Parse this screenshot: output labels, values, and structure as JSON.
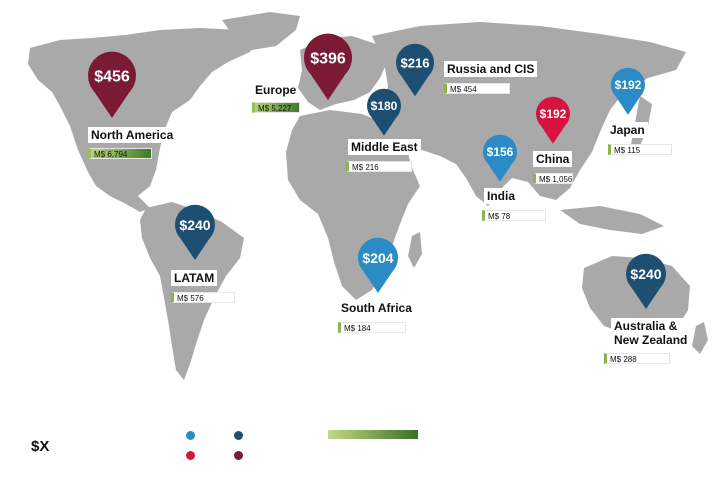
{
  "colors": {
    "land": "#a9a9a9",
    "pin_light_blue": "#2a8bc6",
    "pin_dark_blue": "#1d4f72",
    "pin_red": "#d7143f",
    "pin_maroon": "#7a1a34",
    "bar_start": "#c3da86",
    "bar_end": "#3d6f26"
  },
  "regions": [
    {
      "key": "north-america",
      "label": "North America",
      "price": "$456",
      "pin_color": "maroon",
      "market": "M$ 6,794"
    },
    {
      "key": "europe",
      "label": "Europe",
      "price": "$396",
      "pin_color": "maroon",
      "market": "M$ 5,227"
    },
    {
      "key": "russia-cis",
      "label": "Russia and CIS",
      "price": "$216",
      "pin_color": "dark_blue",
      "market": "M$ 454"
    },
    {
      "key": "middle-east",
      "label": "Middle East",
      "price": "$180",
      "pin_color": "dark_blue",
      "market": "M$ 216"
    },
    {
      "key": "china",
      "label": "China",
      "price": "$192",
      "pin_color": "red",
      "market": "M$ 1,056"
    },
    {
      "key": "japan",
      "label": "Japan",
      "price": "$192",
      "pin_color": "light_blue",
      "market": "M$ 115"
    },
    {
      "key": "india",
      "label": "India",
      "price": "$156",
      "pin_color": "light_blue",
      "market": "M$ 78"
    },
    {
      "key": "latam",
      "label": "LATAM",
      "price": "$240",
      "pin_color": "dark_blue",
      "market": "M$ 576"
    },
    {
      "key": "south-africa",
      "label": "South Africa",
      "price": "$204",
      "pin_color": "light_blue",
      "market": "M$ 184"
    },
    {
      "key": "australia-nz",
      "label_line1": "Australia &",
      "label_line2": "New Zealand",
      "price": "$240",
      "pin_color": "dark_blue",
      "market": "M$ 288"
    }
  ],
  "legend": {
    "price_symbol": "$X",
    "dot_colors": [
      "light_blue",
      "dark_blue",
      "red",
      "maroon"
    ]
  }
}
